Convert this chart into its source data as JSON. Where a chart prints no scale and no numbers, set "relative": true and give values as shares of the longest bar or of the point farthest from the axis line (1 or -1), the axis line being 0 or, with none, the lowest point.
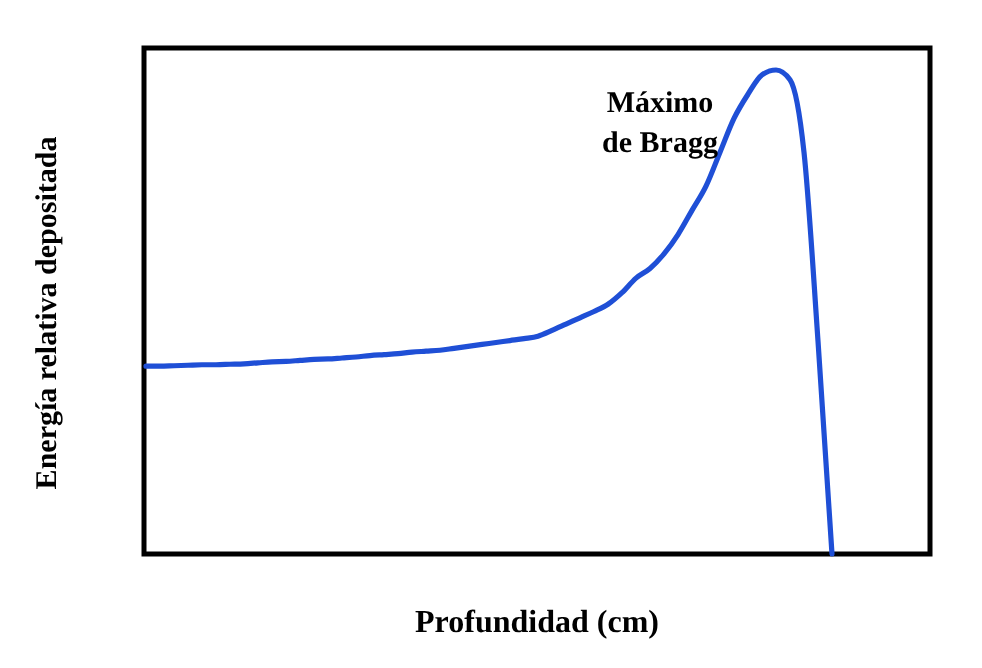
{
  "chart_data": {
    "type": "line",
    "relative": true,
    "xlabel": "Profundidad (cm)",
    "ylabel": "Energía relativa depositada",
    "annotations": [
      "Máximo de Bragg"
    ],
    "categories": [
      null,
      null,
      null,
      null,
      null,
      null,
      null,
      null,
      null,
      null,
      null,
      null,
      null,
      null,
      null,
      null,
      null,
      null,
      null,
      null,
      null,
      null,
      null,
      null,
      null,
      null,
      null,
      null,
      null,
      null,
      null,
      null,
      null,
      null,
      null,
      null,
      null,
      null,
      null,
      null,
      null,
      null,
      null,
      null,
      null,
      null,
      null,
      null,
      null,
      null,
      null,
      null,
      null,
      null,
      null,
      null,
      null
    ],
    "series": [
      {
        "color": "#1f4fd6",
        "values": [
          0.388,
          0.388,
          0.389,
          0.39,
          0.391,
          0.391,
          0.392,
          0.393,
          0.395,
          0.397,
          0.398,
          0.4,
          0.402,
          0.403,
          0.405,
          0.407,
          0.41,
          0.412,
          0.414,
          0.417,
          0.419,
          0.421,
          0.425,
          0.429,
          0.433,
          0.437,
          0.441,
          0.445,
          0.45,
          0.462,
          0.475,
          0.488,
          0.501,
          0.516,
          0.54,
          0.57,
          0.59,
          0.62,
          0.66,
          0.71,
          0.76,
          0.83,
          0.9,
          0.95,
          0.99,
          1,
          0.98,
          0.83,
          0.44,
          0,
          null,
          null,
          null,
          null,
          null,
          null,
          null
        ]
      }
    ],
    "line_style": "solid"
  }
}
